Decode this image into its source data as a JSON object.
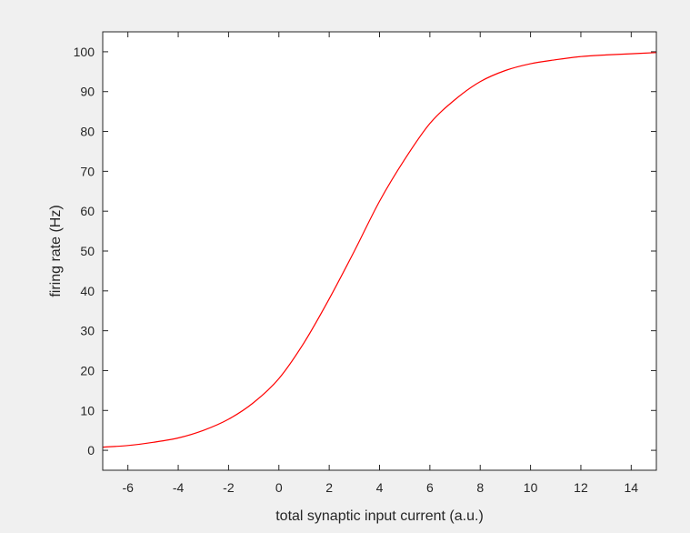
{
  "chart_data": {
    "type": "line",
    "title": "",
    "xlabel": "total synaptic input current (a.u.)",
    "ylabel": "firing rate (Hz)",
    "xlim": [
      -7,
      15
    ],
    "ylim": [
      -5,
      105
    ],
    "xticks": [
      -6,
      -4,
      -2,
      0,
      2,
      4,
      6,
      8,
      10,
      12,
      14
    ],
    "yticks": [
      0,
      10,
      20,
      30,
      40,
      50,
      60,
      70,
      80,
      90,
      100
    ],
    "grid": false,
    "background": "#f0f0f0",
    "axes_color": "#ffffff",
    "series": [
      {
        "color": "#ff0000",
        "x": [
          -7,
          -6,
          -5,
          -4,
          -3,
          -2,
          -1,
          0,
          1,
          2,
          3,
          4,
          5,
          6,
          7,
          8,
          9,
          10,
          11,
          12,
          13,
          14,
          15
        ],
        "y": [
          0.8,
          1.2,
          2.0,
          3.1,
          5.0,
          7.8,
          12.0,
          18.0,
          27.0,
          38.0,
          50.0,
          62.5,
          73.0,
          82.0,
          88.0,
          92.5,
          95.3,
          97.0,
          98.0,
          98.8,
          99.2,
          99.5,
          99.8
        ]
      }
    ]
  }
}
